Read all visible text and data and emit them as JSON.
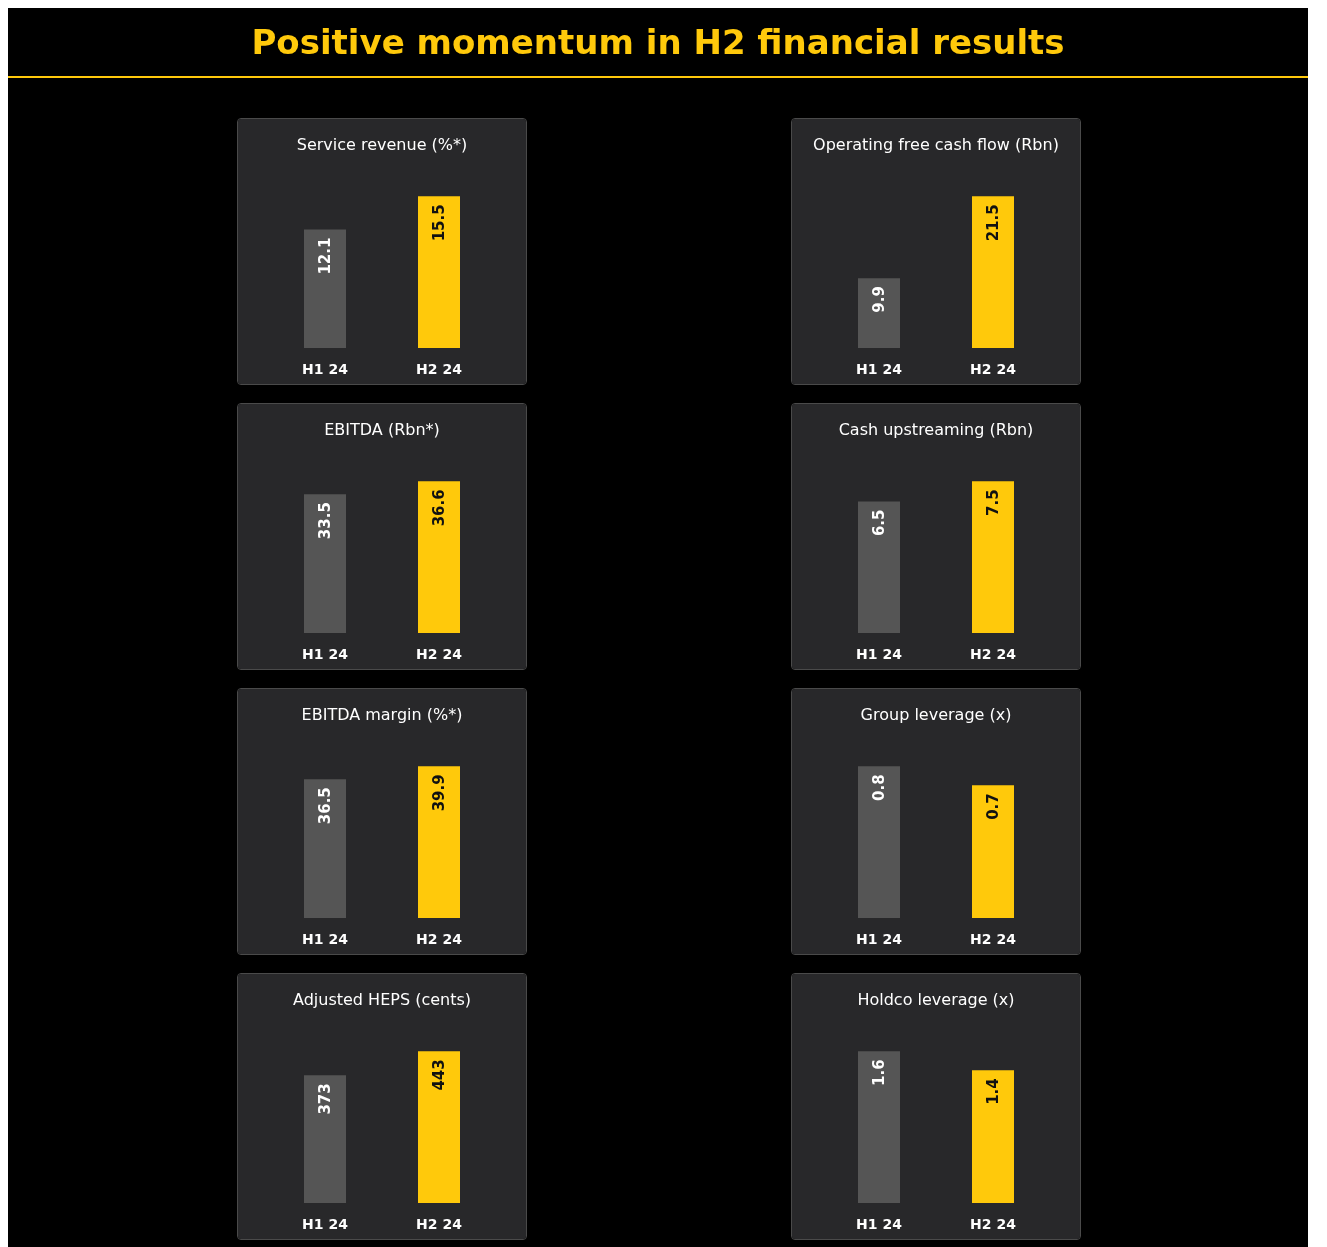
{
  "chart_data": [
    {
      "type": "other",
      "title": "Positive momentum in H2 financial results"
    },
    {
      "type": "bar",
      "title": "Service revenue (%*)",
      "categories": [
        "H1 24",
        "H2 24"
      ],
      "values": [
        12.1,
        15.5
      ],
      "colors": [
        "#555555",
        "#ffc90b"
      ],
      "data_labels": true
    },
    {
      "type": "bar",
      "title": "Operating free cash flow (Rbn)",
      "categories": [
        "H1 24",
        "H2 24"
      ],
      "values": [
        9.9,
        21.5
      ],
      "colors": [
        "#555555",
        "#ffc90b"
      ],
      "data_labels": true
    },
    {
      "type": "bar",
      "title": "EBITDA (Rbn*)",
      "categories": [
        "H1 24",
        "H2 24"
      ],
      "values": [
        33.5,
        36.6
      ],
      "colors": [
        "#555555",
        "#ffc90b"
      ],
      "data_labels": true
    },
    {
      "type": "bar",
      "title": "Cash upstreaming (Rbn)",
      "categories": [
        "H1 24",
        "H2 24"
      ],
      "values": [
        6.5,
        7.5
      ],
      "colors": [
        "#555555",
        "#ffc90b"
      ],
      "data_labels": true
    },
    {
      "type": "bar",
      "title": "EBITDA margin (%*)",
      "categories": [
        "H1 24",
        "H2 24"
      ],
      "values": [
        36.5,
        39.9
      ],
      "colors": [
        "#555555",
        "#ffc90b"
      ],
      "data_labels": true
    },
    {
      "type": "bar",
      "title": "Group leverage (x)",
      "categories": [
        "H1 24",
        "H2 24"
      ],
      "values": [
        0.8,
        0.7
      ],
      "colors": [
        "#555555",
        "#ffc90b"
      ],
      "data_labels": true
    },
    {
      "type": "bar",
      "title": "Adjusted HEPS (cents)",
      "categories": [
        "H1 24",
        "H2 24"
      ],
      "values": [
        373,
        443
      ],
      "colors": [
        "#555555",
        "#ffc90b"
      ],
      "data_labels": true
    },
    {
      "type": "bar",
      "title": "Holdco leverage (x)",
      "categories": [
        "H1 24",
        "H2 24"
      ],
      "values": [
        1.6,
        1.4
      ],
      "colors": [
        "#555555",
        "#ffc90b"
      ],
      "data_labels": true
    }
  ]
}
